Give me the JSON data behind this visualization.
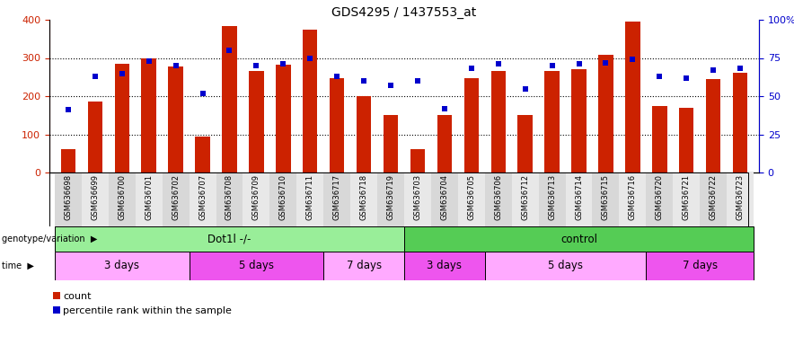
{
  "title": "GDS4295 / 1437553_at",
  "samples": [
    "GSM636698",
    "GSM636699",
    "GSM636700",
    "GSM636701",
    "GSM636702",
    "GSM636707",
    "GSM636708",
    "GSM636709",
    "GSM636710",
    "GSM636711",
    "GSM636717",
    "GSM636718",
    "GSM636719",
    "GSM636703",
    "GSM636704",
    "GSM636705",
    "GSM636706",
    "GSM636712",
    "GSM636713",
    "GSM636714",
    "GSM636715",
    "GSM636716",
    "GSM636720",
    "GSM636721",
    "GSM636722",
    "GSM636723"
  ],
  "counts": [
    62,
    185,
    285,
    300,
    278,
    95,
    383,
    265,
    283,
    375,
    248,
    200,
    150,
    62,
    150,
    248,
    265,
    150,
    265,
    270,
    308,
    395,
    175,
    170,
    245,
    262
  ],
  "percentile_ranks": [
    41,
    63,
    65,
    73,
    70,
    52,
    80,
    70,
    71,
    75,
    63,
    60,
    57,
    60,
    42,
    68,
    71,
    55,
    70,
    71,
    72,
    74,
    63,
    62,
    67,
    68
  ],
  "bar_color": "#cc2200",
  "dot_color": "#0000cc",
  "ylim_left": [
    0,
    400
  ],
  "ylim_right": [
    0,
    100
  ],
  "yticks_left": [
    0,
    100,
    200,
    300,
    400
  ],
  "yticks_right": [
    0,
    25,
    50,
    75,
    100
  ],
  "ytick_right_labels": [
    "0",
    "25",
    "50",
    "75",
    "100%"
  ],
  "genotype_groups": [
    {
      "label": "Dot1l -/-",
      "start": 0,
      "end": 13,
      "color": "#99ee99"
    },
    {
      "label": "control",
      "start": 13,
      "end": 26,
      "color": "#55cc55"
    }
  ],
  "time_groups": [
    {
      "label": "3 days",
      "start": 0,
      "end": 5,
      "color": "#ffaaff"
    },
    {
      "label": "5 days",
      "start": 5,
      "end": 10,
      "color": "#ee55ee"
    },
    {
      "label": "7 days",
      "start": 10,
      "end": 13,
      "color": "#ffaaff"
    },
    {
      "label": "3 days",
      "start": 13,
      "end": 16,
      "color": "#ee55ee"
    },
    {
      "label": "5 days",
      "start": 16,
      "end": 22,
      "color": "#ffaaff"
    },
    {
      "label": "7 days",
      "start": 22,
      "end": 26,
      "color": "#ee55ee"
    }
  ],
  "xtick_bg_even": "#d8d8d8",
  "xtick_bg_odd": "#e8e8e8",
  "legend_count_label": "count",
  "legend_pct_label": "percentile rank within the sample",
  "genotype_label": "genotype/variation",
  "time_label": "time",
  "bar_width": 0.55
}
